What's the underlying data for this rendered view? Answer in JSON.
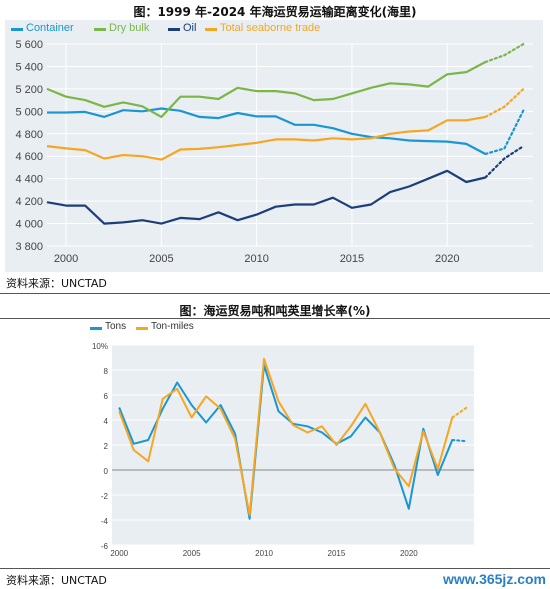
{
  "figures": {
    "top_title": "图：1999 年-2024 年海运贸易运输距离变化(海里)",
    "bottom_title": "图：海运贸易吨和吨英里增长率(%)",
    "top_source": "资料来源：UNCTAD",
    "bottom_source": "资料来源：UNCTAD",
    "watermark": "www.365jz.com"
  },
  "chart_data": [
    {
      "type": "line",
      "title": "",
      "xlabel": "",
      "ylabel": "",
      "xlim": [
        1999,
        2024.5
      ],
      "ylim": [
        3800,
        5600
      ],
      "yticks": [
        3800,
        4000,
        4200,
        4400,
        4600,
        4800,
        5000,
        5200,
        5400,
        5600
      ],
      "ytick_labels": [
        "3 800",
        "4 000",
        "4 200",
        "4 400",
        "4 600",
        "4 800",
        "5 000",
        "5 200",
        "5 400",
        "5 600"
      ],
      "xticks": [
        2000,
        2005,
        2010,
        2015,
        2020
      ],
      "xtick_labels": [
        "2000",
        "2005",
        "2010",
        "2015",
        "2020"
      ],
      "grid": true,
      "legend_position": "top",
      "projection_from": 2022,
      "series": [
        {
          "name": "Container",
          "color": "#1a96d2",
          "x": [
            1999,
            2000,
            2001,
            2002,
            2003,
            2004,
            2005,
            2006,
            2007,
            2008,
            2009,
            2010,
            2011,
            2012,
            2013,
            2014,
            2015,
            2016,
            2017,
            2018,
            2019,
            2020,
            2021,
            2022,
            2023,
            2024
          ],
          "values": [
            4990,
            4990,
            4995,
            4950,
            5010,
            5000,
            5025,
            5005,
            4950,
            4940,
            4985,
            4955,
            4955,
            4880,
            4880,
            4850,
            4800,
            4770,
            4760,
            4740,
            4735,
            4730,
            4710,
            4620,
            4670,
            5010
          ]
        },
        {
          "name": "Dry bulk",
          "color": "#7ab648",
          "x": [
            1999,
            2000,
            2001,
            2002,
            2003,
            2004,
            2005,
            2006,
            2007,
            2008,
            2009,
            2010,
            2011,
            2012,
            2013,
            2014,
            2015,
            2016,
            2017,
            2018,
            2019,
            2020,
            2021,
            2022,
            2023,
            2024
          ],
          "values": [
            5200,
            5130,
            5100,
            5040,
            5080,
            5045,
            4950,
            5130,
            5130,
            5110,
            5210,
            5180,
            5180,
            5160,
            5100,
            5110,
            5160,
            5210,
            5250,
            5240,
            5220,
            5330,
            5350,
            5440,
            5500,
            5600
          ]
        },
        {
          "name": "Oil",
          "color": "#1c3f7a",
          "x": [
            1999,
            2000,
            2001,
            2002,
            2003,
            2004,
            2005,
            2006,
            2007,
            2008,
            2009,
            2010,
            2011,
            2012,
            2013,
            2014,
            2015,
            2016,
            2017,
            2018,
            2019,
            2020,
            2021,
            2022,
            2023,
            2024
          ],
          "values": [
            4190,
            4160,
            4160,
            4000,
            4010,
            4030,
            4000,
            4050,
            4040,
            4100,
            4030,
            4080,
            4150,
            4170,
            4170,
            4230,
            4140,
            4170,
            4280,
            4330,
            4400,
            4470,
            4370,
            4410,
            4580,
            4690
          ]
        },
        {
          "name": "Total seaborne trade",
          "color": "#f5a623",
          "x": [
            1999,
            2000,
            2001,
            2002,
            2003,
            2004,
            2005,
            2006,
            2007,
            2008,
            2009,
            2010,
            2011,
            2012,
            2013,
            2014,
            2015,
            2016,
            2017,
            2018,
            2019,
            2020,
            2021,
            2022,
            2023,
            2024
          ],
          "values": [
            4690,
            4670,
            4655,
            4580,
            4610,
            4600,
            4570,
            4660,
            4665,
            4680,
            4700,
            4720,
            4750,
            4750,
            4740,
            4760,
            4750,
            4760,
            4800,
            4820,
            4830,
            4920,
            4920,
            4950,
            5040,
            5200
          ]
        }
      ]
    },
    {
      "type": "line",
      "title": "",
      "xlabel": "",
      "ylabel": "",
      "xlim": [
        1999.5,
        2024.5
      ],
      "ylim": [
        -6,
        10
      ],
      "yticks": [
        -6,
        -4,
        -2,
        0,
        2,
        4,
        6,
        8,
        10
      ],
      "ytick_labels": [
        "-6",
        "-4",
        "-2",
        "0",
        "2",
        "4",
        "6",
        "8",
        "10%"
      ],
      "xticks": [
        2000,
        2005,
        2010,
        2015,
        2020
      ],
      "xtick_labels": [
        "2000",
        "2005",
        "2010",
        "2015",
        "2020"
      ],
      "grid": true,
      "legend_position": "top-left",
      "projection_from": 2023,
      "series": [
        {
          "name": "Tons",
          "color": "#1a96d2",
          "x": [
            2000,
            2001,
            2002,
            2003,
            2004,
            2005,
            2006,
            2007,
            2008,
            2009,
            2010,
            2011,
            2012,
            2013,
            2014,
            2015,
            2016,
            2017,
            2018,
            2019,
            2020,
            2021,
            2022,
            2023,
            2024
          ],
          "values": [
            5.0,
            2.1,
            2.4,
            4.9,
            7.0,
            5.2,
            3.8,
            5.2,
            2.9,
            -3.9,
            8.4,
            4.7,
            3.7,
            3.5,
            3.0,
            2.1,
            2.7,
            4.2,
            3.0,
            0.4,
            -3.1,
            3.3,
            -0.4,
            2.4,
            2.3
          ]
        },
        {
          "name": "Ton-miles",
          "color": "#f5a623",
          "x": [
            2000,
            2001,
            2002,
            2003,
            2004,
            2005,
            2006,
            2007,
            2008,
            2009,
            2010,
            2011,
            2012,
            2013,
            2014,
            2015,
            2016,
            2017,
            2018,
            2019,
            2020,
            2021,
            2022,
            2023,
            2024
          ],
          "values": [
            4.7,
            1.6,
            0.7,
            5.7,
            6.5,
            4.2,
            5.9,
            4.9,
            2.5,
            -3.6,
            8.9,
            5.5,
            3.6,
            3.0,
            3.5,
            2.0,
            3.5,
            5.3,
            3.0,
            0.1,
            -1.3,
            3.1,
            0.1,
            4.2,
            5.0
          ]
        }
      ]
    }
  ]
}
